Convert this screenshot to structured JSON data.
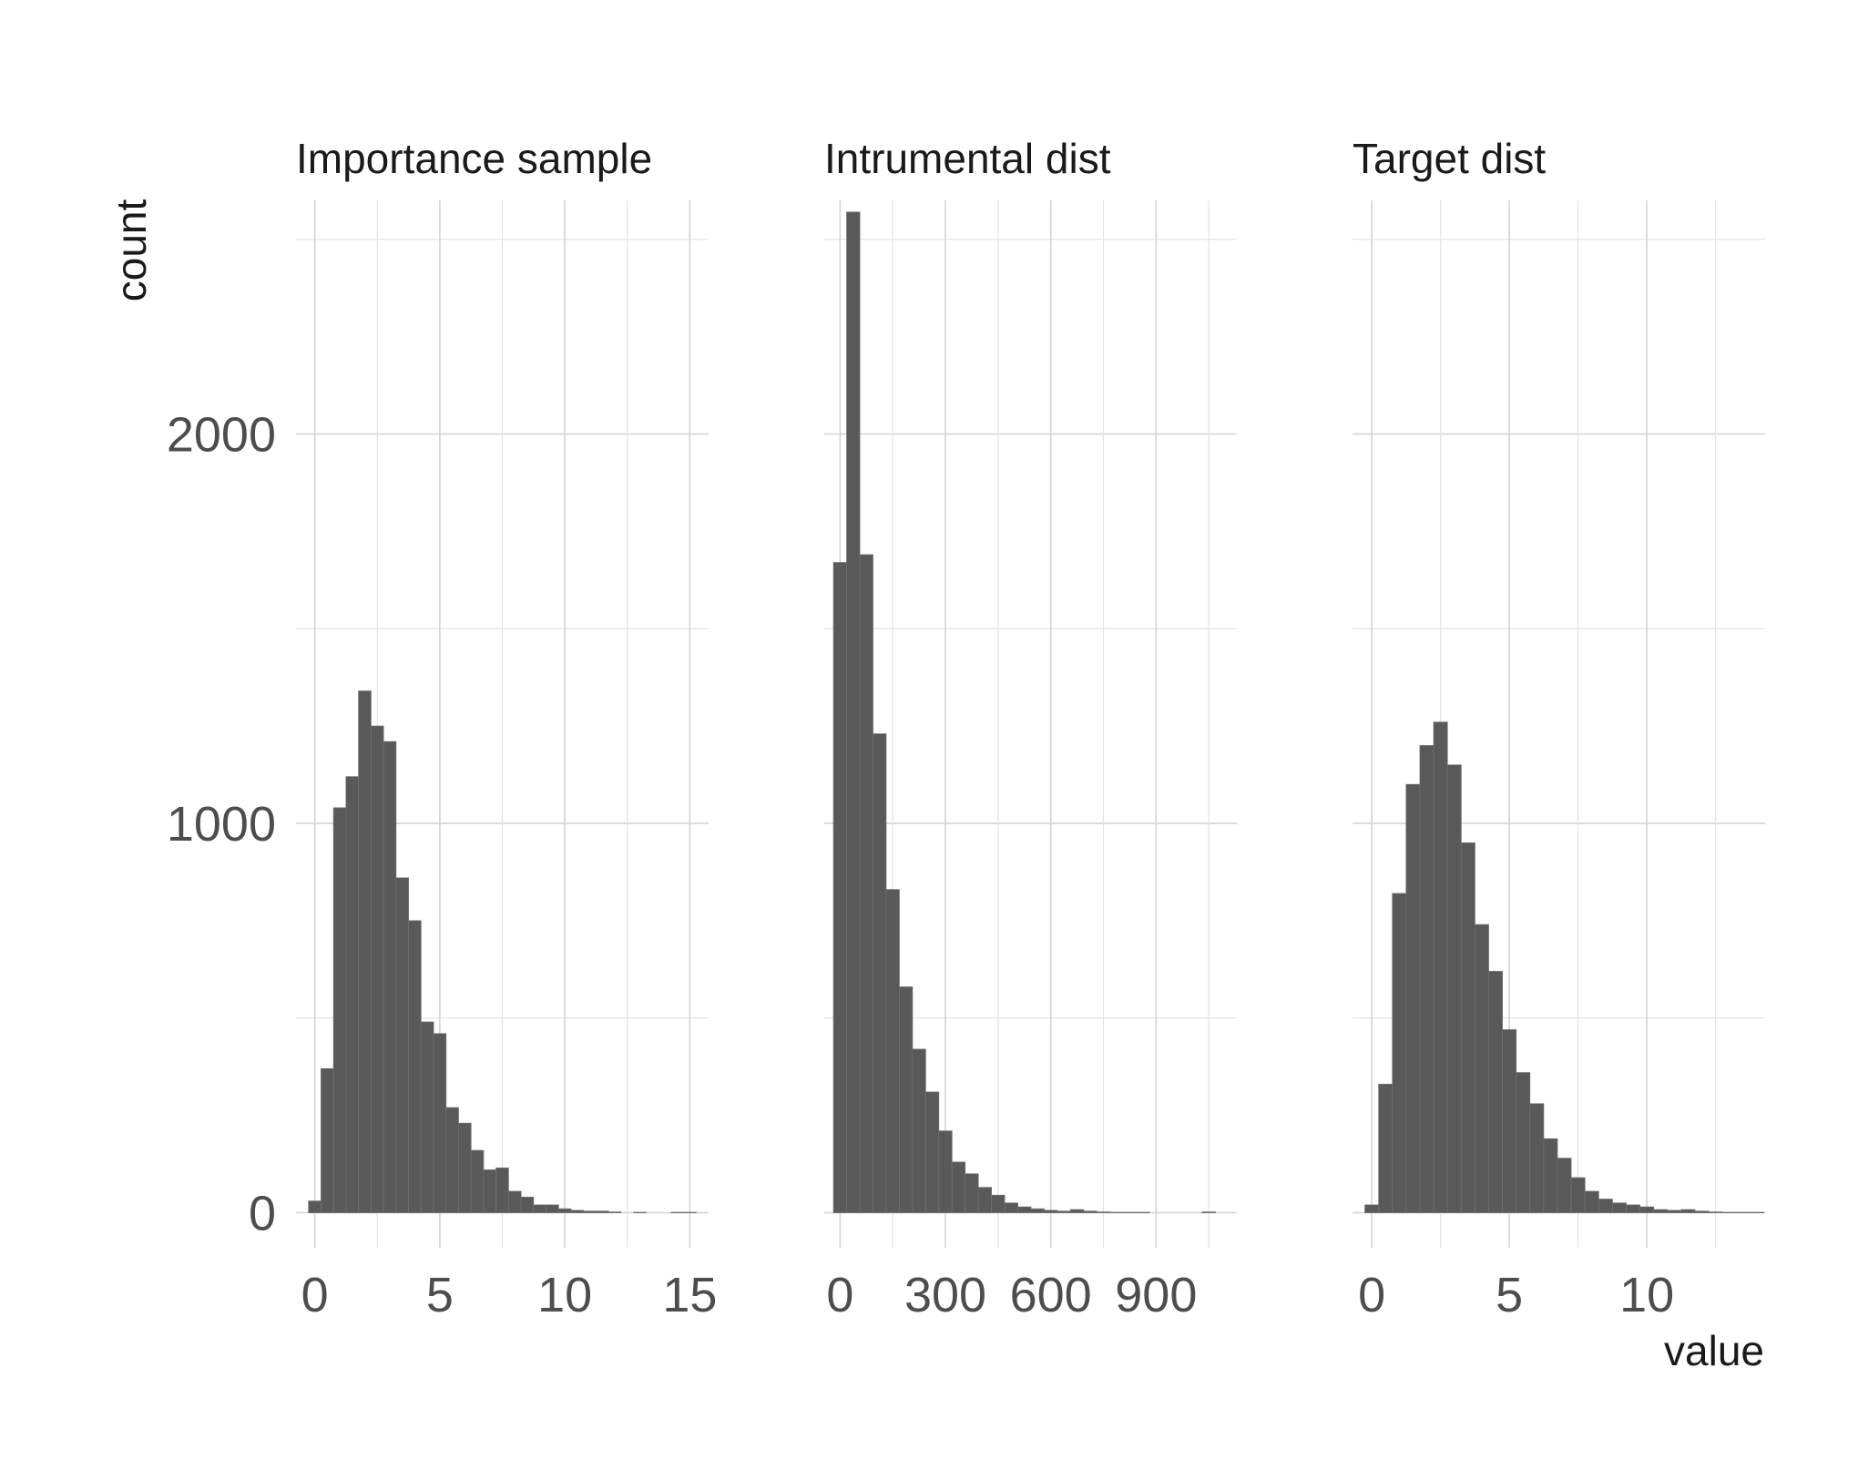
{
  "chart_data": {
    "type": "bar",
    "subtype": "faceted-histogram",
    "xlabel": "value",
    "ylabel": "count",
    "grid": true,
    "bar_color": "#595959",
    "y_axis": {
      "range": [
        -90,
        2600
      ],
      "ticks": [
        0,
        1000,
        2000
      ],
      "minor_ticks": [
        500,
        1500,
        2500
      ]
    },
    "facets": [
      {
        "title": "Importance sample",
        "x_range": [
          -0.75,
          15.75
        ],
        "x_ticks": [
          0,
          5,
          10,
          15
        ],
        "minor_x_ticks": [
          2.5,
          7.5,
          12.5
        ],
        "bin_width": 0.5,
        "bins": [
          {
            "x": 0.0,
            "count": 30
          },
          {
            "x": 0.5,
            "count": 370
          },
          {
            "x": 1.0,
            "count": 1040
          },
          {
            "x": 1.5,
            "count": 1120
          },
          {
            "x": 2.0,
            "count": 1340
          },
          {
            "x": 2.5,
            "count": 1250
          },
          {
            "x": 3.0,
            "count": 1210
          },
          {
            "x": 3.5,
            "count": 860
          },
          {
            "x": 4.0,
            "count": 750
          },
          {
            "x": 4.5,
            "count": 490
          },
          {
            "x": 5.0,
            "count": 460
          },
          {
            "x": 5.5,
            "count": 270
          },
          {
            "x": 6.0,
            "count": 230
          },
          {
            "x": 6.5,
            "count": 160
          },
          {
            "x": 7.0,
            "count": 110
          },
          {
            "x": 7.5,
            "count": 115
          },
          {
            "x": 8.0,
            "count": 55
          },
          {
            "x": 8.5,
            "count": 40
          },
          {
            "x": 9.0,
            "count": 20
          },
          {
            "x": 9.5,
            "count": 20
          },
          {
            "x": 10.0,
            "count": 10
          },
          {
            "x": 10.5,
            "count": 6
          },
          {
            "x": 11.0,
            "count": 4
          },
          {
            "x": 11.5,
            "count": 4
          },
          {
            "x": 12.0,
            "count": 2
          },
          {
            "x": 12.5,
            "count": 0
          },
          {
            "x": 13.0,
            "count": 1
          },
          {
            "x": 13.5,
            "count": 0
          },
          {
            "x": 14.0,
            "count": 0
          },
          {
            "x": 14.5,
            "count": 1
          },
          {
            "x": 15.0,
            "count": 1
          }
        ]
      },
      {
        "title": "Intrumental dist",
        "x_range": [
          -45,
          1130
        ],
        "x_ticks": [
          0,
          300,
          600,
          900
        ],
        "minor_x_ticks": [
          150,
          450,
          750,
          1050
        ],
        "bin_width": 37.5,
        "bins": [
          {
            "x": 0.0,
            "count": 1670
          },
          {
            "x": 37.5,
            "count": 2570
          },
          {
            "x": 75.0,
            "count": 1690
          },
          {
            "x": 112.5,
            "count": 1230
          },
          {
            "x": 150.0,
            "count": 830
          },
          {
            "x": 187.5,
            "count": 580
          },
          {
            "x": 225.0,
            "count": 420
          },
          {
            "x": 262.5,
            "count": 310
          },
          {
            "x": 300.0,
            "count": 210
          },
          {
            "x": 337.5,
            "count": 130
          },
          {
            "x": 375.0,
            "count": 100
          },
          {
            "x": 412.5,
            "count": 65
          },
          {
            "x": 450.0,
            "count": 45
          },
          {
            "x": 487.5,
            "count": 25
          },
          {
            "x": 525.0,
            "count": 15
          },
          {
            "x": 562.5,
            "count": 10
          },
          {
            "x": 600.0,
            "count": 6
          },
          {
            "x": 637.5,
            "count": 4
          },
          {
            "x": 675.0,
            "count": 8
          },
          {
            "x": 712.5,
            "count": 4
          },
          {
            "x": 750.0,
            "count": 2
          },
          {
            "x": 787.5,
            "count": 1
          },
          {
            "x": 825.0,
            "count": 1
          },
          {
            "x": 862.5,
            "count": 1
          },
          {
            "x": 900.0,
            "count": 0
          },
          {
            "x": 937.5,
            "count": 0
          },
          {
            "x": 975.0,
            "count": 0
          },
          {
            "x": 1012.5,
            "count": 0
          },
          {
            "x": 1050.0,
            "count": 2
          }
        ]
      },
      {
        "title": "Target dist",
        "x_range": [
          -0.7,
          14.3
        ],
        "x_ticks": [
          0,
          5,
          10
        ],
        "minor_x_ticks": [
          2.5,
          7.5,
          12.5
        ],
        "bin_width": 0.5,
        "bins": [
          {
            "x": 0.0,
            "count": 20
          },
          {
            "x": 0.5,
            "count": 330
          },
          {
            "x": 1.0,
            "count": 820
          },
          {
            "x": 1.5,
            "count": 1100
          },
          {
            "x": 2.0,
            "count": 1200
          },
          {
            "x": 2.5,
            "count": 1260
          },
          {
            "x": 3.0,
            "count": 1150
          },
          {
            "x": 3.5,
            "count": 950
          },
          {
            "x": 4.0,
            "count": 740
          },
          {
            "x": 4.5,
            "count": 620
          },
          {
            "x": 5.0,
            "count": 470
          },
          {
            "x": 5.5,
            "count": 360
          },
          {
            "x": 6.0,
            "count": 280
          },
          {
            "x": 6.5,
            "count": 190
          },
          {
            "x": 7.0,
            "count": 140
          },
          {
            "x": 7.5,
            "count": 90
          },
          {
            "x": 8.0,
            "count": 55
          },
          {
            "x": 8.5,
            "count": 35
          },
          {
            "x": 9.0,
            "count": 25
          },
          {
            "x": 9.5,
            "count": 20
          },
          {
            "x": 10.0,
            "count": 15
          },
          {
            "x": 10.5,
            "count": 8
          },
          {
            "x": 11.0,
            "count": 6
          },
          {
            "x": 11.5,
            "count": 8
          },
          {
            "x": 12.0,
            "count": 4
          },
          {
            "x": 12.5,
            "count": 2
          },
          {
            "x": 13.0,
            "count": 1
          },
          {
            "x": 13.5,
            "count": 1
          },
          {
            "x": 14.0,
            "count": 1
          }
        ]
      }
    ]
  }
}
